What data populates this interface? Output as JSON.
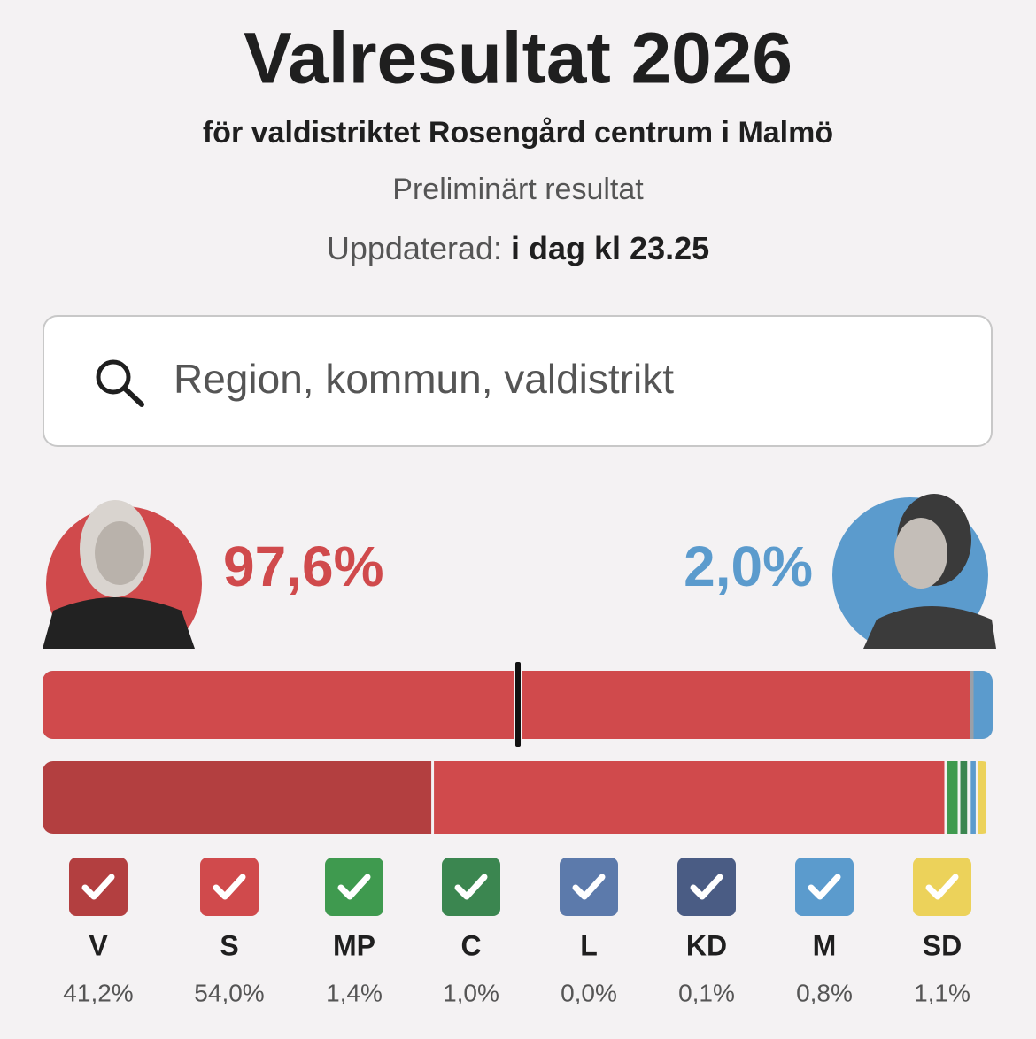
{
  "header": {
    "title": "Valresultat 2026",
    "subtitle": "för valdistriktet Rosengård centrum i Malmö",
    "status": "Preliminärt resultat",
    "updated_label": "Uppdaterad:",
    "updated_value": "i dag kl 23.25"
  },
  "search": {
    "placeholder": "Region, kommun, valdistrikt"
  },
  "blocs": [
    {
      "value": 97.6,
      "label": "97,6%",
      "color": "#d04a4c"
    },
    {
      "value": 2.0,
      "label": "2,0%",
      "color": "#5b9bcd"
    }
  ],
  "parties": [
    {
      "name": "V",
      "value": 41.2,
      "label": "41,2%",
      "color": "#b33f40"
    },
    {
      "name": "S",
      "value": 54.0,
      "label": "54,0%",
      "color": "#d04a4c"
    },
    {
      "name": "MP",
      "value": 1.4,
      "label": "1,4%",
      "color": "#3f9a4f"
    },
    {
      "name": "C",
      "value": 1.0,
      "label": "1,0%",
      "color": "#3b8650"
    },
    {
      "name": "L",
      "value": 0.0,
      "label": "0,0%",
      "color": "#5c7aab"
    },
    {
      "name": "KD",
      "value": 0.1,
      "label": "0,1%",
      "color": "#4a5c84"
    },
    {
      "name": "M",
      "value": 0.8,
      "label": "0,8%",
      "color": "#5b9bcd"
    },
    {
      "name": "SD",
      "value": 1.1,
      "label": "1,1%",
      "color": "#ecd25a"
    }
  ]
}
